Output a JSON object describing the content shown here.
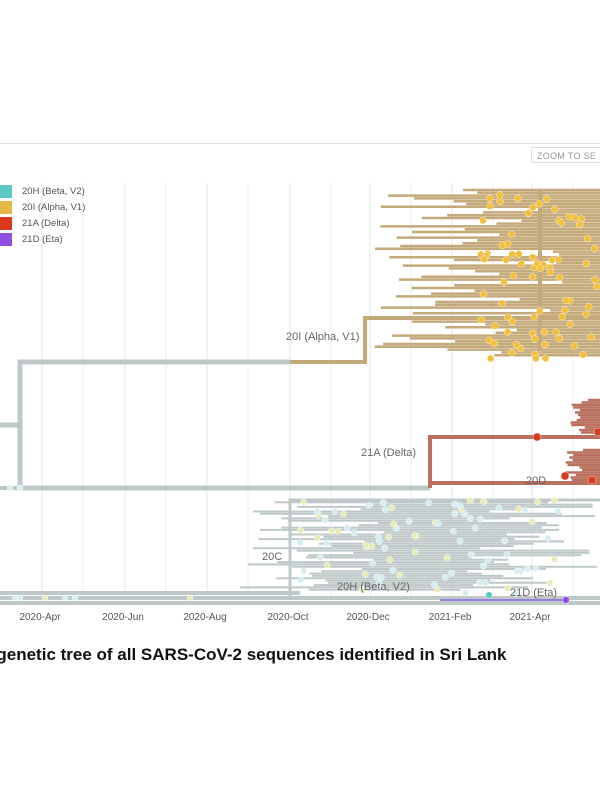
{
  "zoom_button": "ZOOM TO SE",
  "legend": [
    {
      "label": "20H (Beta, V2)",
      "color": "#5cc8c4"
    },
    {
      "label": "20I (Alpha, V1)",
      "color": "#e6b84a"
    },
    {
      "label": "21A (Delta)",
      "color": "#d93a1e"
    },
    {
      "label": "21D (Eta)",
      "color": "#8e4ee0"
    }
  ],
  "axis_ticks": [
    "2020-Apr",
    "2020-Jun",
    "2020-Aug",
    "2020-Oct",
    "2020-Dec",
    "2021-Feb",
    "2021-Apr",
    "20"
  ],
  "clade_labels": {
    "alpha": "20I (Alpha, V1)",
    "delta": "21A (Delta)",
    "d20": "20D",
    "c20": "20C",
    "beta": "20H (Beta, V2)",
    "eta": "21D (Eta)"
  },
  "branch_colors": {
    "base": "#bfc8c9",
    "alpha": "#c4a97a",
    "delta": "#b9705f",
    "eta": "#9a7fd6"
  },
  "tip_colors": {
    "base": "#d6eef2",
    "alpha": "#f2c03c",
    "delta": "#d93a1e",
    "yellowish": "#e8ecb8"
  },
  "caption": "ogenetic tree of all SARS-CoV-2 sequences identified in Sri Lank"
}
